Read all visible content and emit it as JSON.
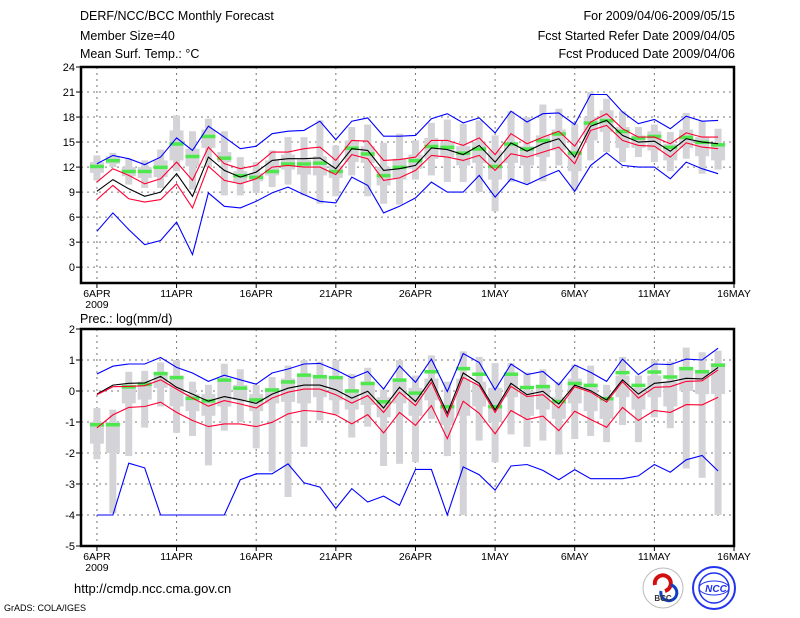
{
  "header": {
    "title": "DERF/NCC/BCC Monthly Forecast",
    "member_size": "Member Size=40",
    "variable_top": "Mean Surf. Temp.: °C",
    "period": "For 2009/04/06-2009/05/15",
    "started": "Fcst Started Refer Date 2009/04/05",
    "produced": "Fcst Produced Date 2009/04/06"
  },
  "footer": {
    "url": "http://cmdp.ncc.cma.gov.cn",
    "credit": "GrADS: COLA/IGES",
    "logos": [
      "BCC",
      "NCC"
    ]
  },
  "colors": {
    "max_min": "#0000ff",
    "spread": "#ff0033",
    "mean": "#000000",
    "obs": "#4ee84e",
    "box": "#d4d4d8"
  },
  "chart_data": [
    {
      "type": "line",
      "title": "Mean Surf. Temp.: °C",
      "ylabel": "",
      "ylim": [
        -1.9,
        24
      ],
      "xlim": [
        -1,
        40
      ],
      "yticks": [
        0,
        3,
        6,
        9,
        12,
        15,
        18,
        21,
        24
      ],
      "xticks": [
        {
          "day": 0,
          "label": "6APR"
        },
        {
          "day": 5,
          "label": "11APR"
        },
        {
          "day": 10,
          "label": "16APR"
        },
        {
          "day": 15,
          "label": "21APR"
        },
        {
          "day": 20,
          "label": "26APR"
        },
        {
          "day": 25,
          "label": "1MAY"
        },
        {
          "day": 30,
          "label": "6MAY"
        },
        {
          "day": 35,
          "label": "11MAY"
        },
        {
          "day": 40,
          "label": "16MAY"
        }
      ],
      "year_label": "2009",
      "grid": true,
      "series": [
        {
          "name": "max",
          "color": "#0000ff",
          "values": [
            12.4,
            13.4,
            13.0,
            12.3,
            13.2,
            15.5,
            14.0,
            16.9,
            15.6,
            14.2,
            14.5,
            16.0,
            16.3,
            16.4,
            17.5,
            15.3,
            17.5,
            17.9,
            15.7,
            15.7,
            15.8,
            17.8,
            18.4,
            17.3,
            17.9,
            16.1,
            18.7,
            17.4,
            18.4,
            18.5,
            17.1,
            20.7,
            20.7,
            18.6,
            17.2,
            17.7,
            16.6,
            18.1,
            17.5,
            17.6
          ]
        },
        {
          "name": "upper",
          "color": "#ff0033",
          "values": [
            10.2,
            11.8,
            11.0,
            10.0,
            10.6,
            12.6,
            10.4,
            14.4,
            12.4,
            11.8,
            12.2,
            13.8,
            13.8,
            14.2,
            14.4,
            12.8,
            15.2,
            15.1,
            12.8,
            12.9,
            13.2,
            15.2,
            15.2,
            14.6,
            15.5,
            13.5,
            16.0,
            14.8,
            15.6,
            16.3,
            14.5,
            17.4,
            18.4,
            16.6,
            15.6,
            15.6,
            14.8,
            16.1,
            15.6,
            15.6
          ]
        },
        {
          "name": "mean",
          "color": "#000000",
          "values": [
            9.1,
            10.5,
            9.4,
            8.5,
            9.0,
            11.2,
            8.5,
            13.2,
            11.6,
            10.8,
            11.4,
            12.8,
            13.0,
            13.0,
            13.1,
            11.8,
            14.2,
            14.0,
            11.6,
            11.8,
            12.2,
            14.3,
            14.1,
            13.5,
            14.6,
            12.6,
            14.9,
            13.9,
            14.8,
            15.4,
            13.2,
            16.9,
            17.6,
            15.8,
            15.0,
            15.1,
            13.9,
            15.4,
            15.0,
            14.8
          ]
        },
        {
          "name": "lower",
          "color": "#ff0033",
          "values": [
            8.1,
            9.8,
            8.2,
            7.8,
            8.1,
            10.0,
            7.1,
            12.1,
            10.4,
            10.0,
            10.6,
            12.0,
            12.2,
            12.0,
            12.0,
            11.1,
            13.5,
            13.0,
            10.4,
            10.7,
            11.6,
            13.4,
            13.2,
            12.8,
            13.4,
            11.6,
            13.6,
            13.2,
            13.8,
            14.4,
            12.4,
            16.4,
            17.0,
            15.2,
            14.6,
            14.5,
            13.2,
            14.9,
            14.4,
            14.2
          ]
        },
        {
          "name": "min",
          "color": "#0000ff",
          "values": [
            4.3,
            6.5,
            4.5,
            2.7,
            3.2,
            5.4,
            1.5,
            8.9,
            7.3,
            7.1,
            7.9,
            8.9,
            9.6,
            8.7,
            7.9,
            7.7,
            10.8,
            9.8,
            6.5,
            7.3,
            8.3,
            10.2,
            9.0,
            9.0,
            11.0,
            8.4,
            10.6,
            9.9,
            10.8,
            11.6,
            9.1,
            12.2,
            13.7,
            12.2,
            12.0,
            12.0,
            10.6,
            12.6,
            11.8,
            11.2
          ]
        }
      ],
      "obs": [
        12.1,
        12.8,
        11.5,
        11.5,
        12.0,
        14.8,
        13.3,
        15.7,
        13.1,
        11.0,
        10.8,
        11.5,
        12.4,
        12.4,
        12.5,
        11.5,
        14.3,
        13.6,
        11.0,
        12.0,
        12.8,
        14.5,
        14.4,
        13.7,
        14.2,
        12.1,
        14.8,
        14.2,
        15.2,
        16.0,
        13.7,
        17.3,
        17.6,
        16.3,
        15.5,
        15.7,
        14.4,
        15.6,
        15.0,
        14.7
      ],
      "boxes": [
        [
          10.4,
          11.3,
          12.6,
          13.4
        ],
        [
          12.0,
          12.4,
          13.3,
          13.7
        ],
        [
          9.9,
          10.9,
          12.0,
          13.0
        ],
        [
          9.5,
          10.7,
          12.0,
          12.8
        ],
        [
          9.5,
          10.8,
          12.8,
          14.1
        ],
        [
          11.5,
          12.8,
          16.4,
          18.2
        ],
        [
          9.3,
          12.1,
          14.2,
          16.3
        ],
        [
          12.0,
          14.3,
          16.5,
          17.8
        ],
        [
          8.6,
          12.6,
          13.8,
          16.3
        ],
        [
          8.6,
          10.2,
          11.5,
          13.2
        ],
        [
          8.9,
          10.3,
          11.3,
          12.6
        ],
        [
          9.6,
          11.0,
          12.8,
          14.0
        ],
        [
          9.9,
          11.7,
          13.5,
          15.6
        ],
        [
          8.6,
          11.1,
          12.9,
          15.6
        ],
        [
          7.6,
          11.0,
          13.3,
          17.6
        ],
        [
          8.5,
          10.7,
          12.2,
          14.6
        ],
        [
          11.0,
          12.6,
          15.2,
          16.8
        ],
        [
          8.5,
          12.5,
          14.5,
          17.1
        ],
        [
          7.6,
          9.8,
          12.0,
          14.9
        ],
        [
          7.5,
          10.5,
          13.0,
          16.0
        ],
        [
          10.5,
          11.8,
          13.5,
          15.2
        ],
        [
          11.0,
          13.0,
          15.5,
          17.3
        ],
        [
          10.2,
          13.2,
          15.0,
          17.7
        ],
        [
          10.2,
          12.2,
          14.5,
          17.2
        ],
        [
          9.0,
          12.5,
          15.0,
          17.6
        ],
        [
          6.7,
          10.5,
          14.0,
          15.8
        ],
        [
          10.2,
          12.5,
          14.8,
          18.7
        ],
        [
          10.0,
          12.2,
          14.5,
          18.0
        ],
        [
          10.3,
          13.2,
          15.8,
          19.5
        ],
        [
          12.2,
          14.0,
          16.5,
          19.0
        ],
        [
          9.2,
          11.5,
          14.0,
          17.2
        ],
        [
          12.8,
          15.2,
          18.0,
          21.0
        ],
        [
          13.8,
          16.2,
          18.8,
          20.2
        ],
        [
          12.6,
          14.3,
          16.8,
          18.7
        ],
        [
          13.2,
          14.3,
          15.8,
          16.8
        ],
        [
          12.6,
          14.0,
          16.3,
          17.1
        ],
        [
          11.5,
          12.8,
          14.8,
          16.2
        ],
        [
          13.0,
          14.3,
          16.5,
          18.5
        ],
        [
          11.2,
          13.3,
          15.6,
          17.5
        ],
        [
          11.7,
          12.8,
          14.8,
          16.6
        ]
      ]
    },
    {
      "type": "line",
      "title": "Prec.: log(mm/d)",
      "ylabel": "",
      "ylim": [
        -5,
        2
      ],
      "xlim": [
        -1,
        40
      ],
      "yticks": [
        -5,
        -4,
        -3,
        -2,
        -1,
        0,
        1,
        2
      ],
      "xticks": [
        {
          "day": 0,
          "label": "6APR"
        },
        {
          "day": 5,
          "label": "11APR"
        },
        {
          "day": 10,
          "label": "16APR"
        },
        {
          "day": 15,
          "label": "21APR"
        },
        {
          "day": 20,
          "label": "26APR"
        },
        {
          "day": 25,
          "label": "1MAY"
        },
        {
          "day": 30,
          "label": "6MAY"
        },
        {
          "day": 35,
          "label": "11MAY"
        },
        {
          "day": 40,
          "label": "16MAY"
        }
      ],
      "year_label": "2009",
      "grid": true,
      "series": [
        {
          "name": "max",
          "color": "#0000ff",
          "values": [
            0.55,
            0.8,
            0.87,
            0.87,
            1.08,
            0.76,
            0.58,
            0.31,
            0.51,
            0.36,
            0.22,
            0.58,
            0.71,
            0.87,
            0.89,
            0.68,
            0.42,
            0.63,
            0.06,
            0.81,
            0.28,
            1.03,
            -0.02,
            1.21,
            0.92,
            0.04,
            0.87,
            0.53,
            0.63,
            0.2,
            0.84,
            0.6,
            0.31,
            1.03,
            0.53,
            0.87,
            0.85,
            1.03,
            1.0,
            1.38
          ]
        },
        {
          "name": "mean",
          "color": "#000000",
          "values": [
            -0.1,
            0.19,
            0.25,
            0.26,
            0.47,
            0.12,
            -0.1,
            -0.33,
            -0.18,
            -0.28,
            -0.4,
            -0.1,
            0.09,
            0.19,
            0.19,
            0.04,
            -0.23,
            -0.01,
            -0.55,
            0.12,
            -0.34,
            0.39,
            -0.72,
            0.58,
            0.25,
            -0.61,
            0.25,
            -0.12,
            -0.01,
            -0.42,
            0.19,
            0.01,
            -0.29,
            0.36,
            -0.1,
            0.25,
            0.3,
            0.41,
            0.39,
            0.76
          ]
        },
        {
          "name": "upper",
          "color": "#ff0033",
          "values": [
            -0.12,
            0.14,
            0.15,
            0.17,
            0.36,
            0.06,
            -0.23,
            -0.49,
            -0.31,
            -0.42,
            -0.55,
            -0.23,
            -0.04,
            0.06,
            0.06,
            -0.12,
            -0.39,
            -0.15,
            -0.69,
            -0.04,
            -0.47,
            0.28,
            -0.83,
            0.44,
            0.17,
            -0.69,
            0.15,
            -0.18,
            -0.12,
            -0.55,
            0.14,
            -0.04,
            -0.36,
            0.3,
            -0.23,
            0.12,
            0.14,
            0.31,
            0.33,
            0.68
          ]
        },
        {
          "name": "lower",
          "color": "#ff0033",
          "values": [
            -1.19,
            -0.77,
            -0.53,
            -0.5,
            -0.36,
            -0.69,
            -0.95,
            -1.15,
            -1.06,
            -1.06,
            -1.15,
            -1.01,
            -0.74,
            -0.63,
            -0.66,
            -0.77,
            -1.06,
            -0.76,
            -1.35,
            -0.69,
            -1.11,
            -0.47,
            -1.54,
            -0.33,
            -0.72,
            -1.38,
            -0.63,
            -0.92,
            -0.81,
            -1.28,
            -0.65,
            -0.92,
            -1.17,
            -0.53,
            -0.95,
            -0.63,
            -0.69,
            -0.44,
            -0.45,
            -0.2
          ]
        },
        {
          "name": "min",
          "color": "#0000ff",
          "values": [
            -4.0,
            -4.0,
            -2.33,
            -2.48,
            -4.0,
            -4.0,
            -4.0,
            -4.0,
            -4.0,
            -2.86,
            -2.67,
            -2.67,
            -2.35,
            -2.96,
            -3.1,
            -3.79,
            -3.15,
            -3.58,
            -3.39,
            -3.69,
            -2.53,
            -2.53,
            -4.0,
            -2.45,
            -2.7,
            -3.2,
            -2.42,
            -2.37,
            -2.56,
            -2.86,
            -2.54,
            -2.83,
            -2.83,
            -2.83,
            -2.74,
            -2.37,
            -2.62,
            -2.22,
            -2.08,
            -2.58
          ]
        }
      ],
      "obs": [
        -1.08,
        -1.08,
        0.14,
        0.22,
        0.57,
        0.44,
        -0.23,
        -0.31,
        0.36,
        0.1,
        -0.28,
        0.04,
        0.3,
        0.52,
        0.47,
        0.44,
        0.01,
        0.25,
        -0.34,
        0.36,
        -0.06,
        0.63,
        -0.5,
        0.73,
        0.55,
        -0.5,
        0.55,
        0.12,
        0.15,
        -0.33,
        0.25,
        0.19,
        -0.24,
        0.6,
        0.19,
        0.62,
        0.46,
        0.73,
        0.63,
        0.84
      ],
      "boxes": [
        [
          -2.2,
          -1.7,
          -1.0,
          -0.55
        ],
        [
          -3.95,
          -2.0,
          -1.0,
          -0.6
        ],
        [
          -2.1,
          -0.4,
          0.2,
          0.62
        ],
        [
          -1.18,
          -0.28,
          0.3,
          0.65
        ],
        [
          -0.5,
          0.1,
          0.6,
          0.92
        ],
        [
          -1.35,
          -0.5,
          0.5,
          1.0
        ],
        [
          -1.45,
          -0.65,
          -0.1,
          0.3
        ],
        [
          -2.4,
          -0.8,
          -0.1,
          0.2
        ],
        [
          -1.28,
          -0.5,
          0.4,
          0.88
        ],
        [
          -1.0,
          -0.3,
          0.2,
          0.7
        ],
        [
          -1.85,
          -0.65,
          -0.1,
          0.2
        ],
        [
          -2.6,
          -0.4,
          0.1,
          0.45
        ],
        [
          -3.42,
          -0.35,
          0.4,
          0.82
        ],
        [
          -1.8,
          -0.4,
          0.5,
          1.0
        ],
        [
          -0.95,
          -0.2,
          0.45,
          0.95
        ],
        [
          -0.75,
          -0.3,
          0.4,
          1.0
        ],
        [
          -1.5,
          -0.6,
          0.0,
          0.55
        ],
        [
          -1.15,
          -0.45,
          0.3,
          0.75
        ],
        [
          -2.42,
          -0.85,
          -0.2,
          0.05
        ],
        [
          -2.35,
          -0.4,
          0.3,
          1.0
        ],
        [
          -2.3,
          -0.8,
          0.1,
          0.5
        ],
        [
          -0.9,
          -0.3,
          0.4,
          1.15
        ],
        [
          -2.1,
          -1.1,
          -0.4,
          0.3
        ],
        [
          -4.0,
          -0.8,
          0.4,
          1.28
        ],
        [
          -1.6,
          -0.5,
          0.3,
          1.1
        ],
        [
          -2.3,
          -1.0,
          0.1,
          0.9
        ],
        [
          -1.4,
          -0.2,
          0.5,
          0.9
        ],
        [
          -1.8,
          -0.8,
          0.0,
          0.6
        ],
        [
          -1.6,
          -0.6,
          0.2,
          0.7
        ],
        [
          -2.05,
          -0.9,
          -0.2,
          0.3
        ],
        [
          -1.55,
          -0.4,
          0.4,
          0.85
        ],
        [
          -1.45,
          -0.65,
          0.2,
          0.82
        ],
        [
          -1.65,
          -0.9,
          -0.2,
          0.2
        ],
        [
          -1.1,
          -0.2,
          0.5,
          1.1
        ],
        [
          -1.65,
          -0.6,
          0.1,
          0.5
        ],
        [
          -0.85,
          -0.2,
          0.5,
          1.0
        ],
        [
          -1.2,
          -0.5,
          0.3,
          0.95
        ],
        [
          -2.5,
          0.0,
          0.7,
          1.4
        ],
        [
          -2.8,
          -0.1,
          0.6,
          1.25
        ],
        [
          -4.0,
          -0.1,
          0.9,
          1.3
        ]
      ]
    }
  ]
}
